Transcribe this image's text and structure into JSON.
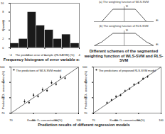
{
  "chart_data": [
    {
      "type": "histogram",
      "title": "Frequency histogram of error variable eᵢ",
      "x_label": "The prediction error of sample i(RLS-SVM) (%)",
      "y_label": "Quantity",
      "bins": [
        -4,
        -3,
        -2,
        -1,
        0,
        1,
        2,
        3,
        4
      ],
      "values": [
        1,
        2,
        8,
        5,
        4,
        2,
        3,
        1
      ],
      "color": "#1a1a1a",
      "xlim": [
        -4,
        4
      ],
      "xticks": [
        -4,
        -2,
        0,
        2,
        4
      ],
      "ylim": [
        0,
        10
      ],
      "yticks": [
        0,
        2,
        4,
        6,
        8,
        10
      ]
    },
    {
      "type": "line",
      "title": "Different schemes of the segmented weighting function of WLS-SVM and RLS-SVM",
      "subtitle": "(a) The weighting function of WLS-SVM",
      "x_label": "eᵢ",
      "y_label": "vᵢ",
      "x": [
        -4,
        -3,
        -1.5,
        1.5,
        3,
        4
      ],
      "values": [
        0,
        0,
        1,
        1,
        0,
        0
      ],
      "color": "#333333",
      "xlim": [
        -4,
        4
      ],
      "ylim": [
        0,
        1.2
      ],
      "tick_labels": false
    },
    {
      "type": "line",
      "subtitle": "(b) The weighting function of RLS-SVM",
      "x_label": "eᵢ",
      "y_label": "vᵢ",
      "x": [
        -4,
        -3,
        -1.5,
        1.5,
        3,
        4
      ],
      "values": [
        0,
        0.3,
        1,
        1,
        0.3,
        0
      ],
      "color": "#333333",
      "xlim": [
        -4,
        4
      ],
      "ylim": [
        0,
        1.2
      ],
      "tick_labels": false
    },
    {
      "type": "scatter",
      "title": "Prediction results of different regression models",
      "x_label": "Known O₂ concentration(%)",
      "y_label": "Predicted O₂ concentration(%)",
      "xlim": [
        70,
        100
      ],
      "xticks": [
        70,
        80,
        90,
        100
      ],
      "ylim": [
        70,
        100
      ],
      "yticks": [
        70,
        80,
        90,
        100
      ],
      "series": [
        {
          "name": "The predictions of WLS-SVM model",
          "type": "scatter",
          "color": "#111111",
          "marker": "circle",
          "x": [
            76,
            78,
            80,
            82,
            84,
            86,
            88,
            90,
            92,
            94
          ],
          "values": [
            77.5,
            76.8,
            81.6,
            80.9,
            85.2,
            84.6,
            89.7,
            88.8,
            93.4,
            92.7
          ],
          "errors": [
            1.2,
            1.0,
            1.3,
            1.1,
            1.2,
            1.0,
            1.3,
            1.1,
            1.2,
            1.0
          ]
        },
        {
          "type": "line",
          "color": "#111111",
          "line_style": "solid",
          "x": [
            70,
            100
          ],
          "values": [
            70,
            100
          ]
        }
      ]
    },
    {
      "type": "scatter",
      "x_label": "Known O₂ concentration(%)",
      "y_label": "Predicted O₂ concentration(%)",
      "xlim": [
        70,
        100
      ],
      "xticks": [
        70,
        80,
        90,
        100
      ],
      "ylim": [
        70,
        100
      ],
      "yticks": [
        70,
        80,
        90,
        100
      ],
      "series": [
        {
          "name": "The predictions of proposed RLS-SVM model",
          "type": "scatter",
          "color": "#111111",
          "marker": "circle",
          "x": [
            76,
            78,
            80,
            82,
            84,
            86,
            88,
            90,
            92,
            94
          ],
          "values": [
            76.6,
            78.5,
            80.7,
            81.6,
            84.4,
            85.7,
            88.5,
            89.6,
            92.3,
            93.6
          ],
          "errors": [
            0.8,
            0.7,
            0.9,
            0.8,
            0.7,
            0.9,
            0.8,
            0.7,
            0.9,
            0.8
          ]
        },
        {
          "type": "line",
          "color": "#111111",
          "line_style": "solid",
          "x": [
            70,
            100
          ],
          "values": [
            70,
            100
          ]
        }
      ]
    }
  ]
}
